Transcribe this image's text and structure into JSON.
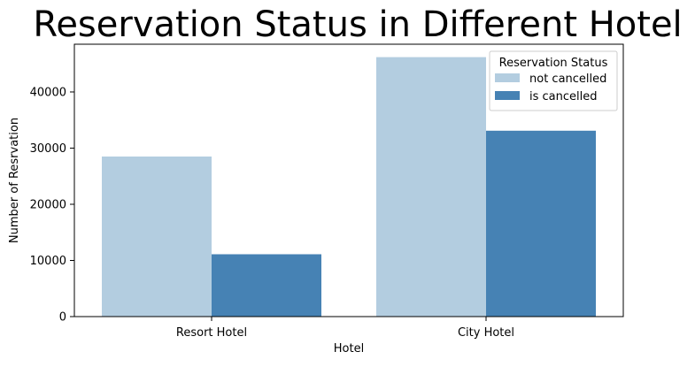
{
  "chart_data": {
    "type": "bar",
    "title": "Reservation Status in Different Hotel",
    "xlabel": "Hotel",
    "ylabel": "Number of Resrvation",
    "categories": [
      "Resort Hotel",
      "City Hotel"
    ],
    "series": [
      {
        "name": "not cancelled",
        "values": [
          28500,
          46200
        ],
        "color": "#b3cde0"
      },
      {
        "name": "is cancelled",
        "values": [
          11100,
          33100
        ],
        "color": "#4682b4"
      }
    ],
    "ylim": [
      0,
      48500
    ],
    "yticks": [
      0,
      10000,
      20000,
      30000,
      40000
    ],
    "ytick_labels": [
      "0",
      "10000",
      "20000",
      "30000",
      "40000"
    ],
    "legend": {
      "title": "Reservation Status",
      "placement": "top-right"
    },
    "grid": false
  }
}
